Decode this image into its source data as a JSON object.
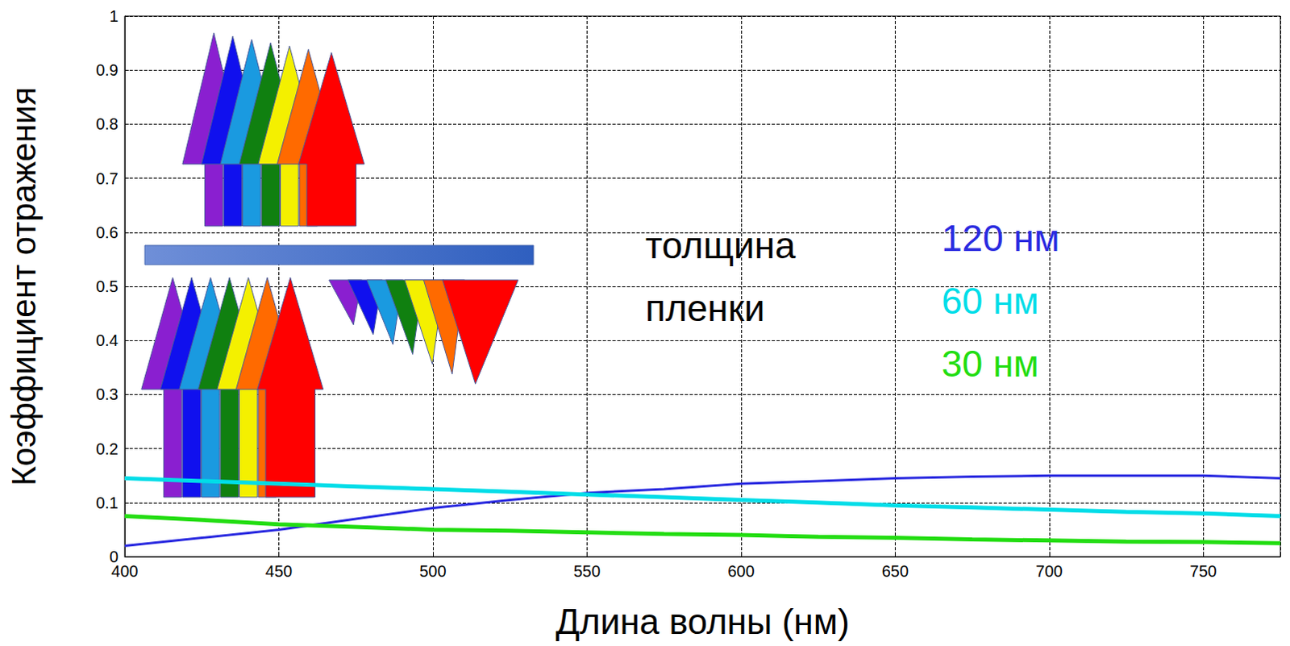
{
  "chart_data": {
    "type": "line",
    "x_label": "Длина волны (нм)",
    "y_label": "Коэффициент отражения",
    "legend_title": "толщина пленки",
    "x": [
      400,
      425,
      450,
      475,
      500,
      525,
      550,
      575,
      600,
      625,
      650,
      675,
      700,
      725,
      750,
      775
    ],
    "series": [
      {
        "name": "120 нм",
        "color": "#2a2ae0",
        "values": [
          0.02,
          0.035,
          0.05,
          0.07,
          0.09,
          0.105,
          0.118,
          0.125,
          0.135,
          0.14,
          0.145,
          0.148,
          0.15,
          0.15,
          0.15,
          0.145
        ]
      },
      {
        "name": "60 нм",
        "color": "#00dde8",
        "values": [
          0.145,
          0.14,
          0.135,
          0.13,
          0.125,
          0.12,
          0.115,
          0.11,
          0.105,
          0.1,
          0.095,
          0.091,
          0.087,
          0.083,
          0.08,
          0.075
        ]
      },
      {
        "name": "30 нм",
        "color": "#22dd11",
        "values": [
          0.075,
          0.068,
          0.06,
          0.055,
          0.05,
          0.048,
          0.045,
          0.042,
          0.04,
          0.037,
          0.035,
          0.032,
          0.03,
          0.028,
          0.027,
          0.025
        ]
      }
    ],
    "xlim": [
      400,
      775
    ],
    "xticks": [
      400,
      450,
      500,
      550,
      600,
      650,
      700,
      750
    ],
    "ylim": [
      0,
      1
    ],
    "yticks": [
      0,
      0.1,
      0.2,
      0.3,
      0.4,
      0.5,
      0.6,
      0.7,
      0.8,
      0.9,
      1
    ],
    "grid": true,
    "legend": "center"
  }
}
